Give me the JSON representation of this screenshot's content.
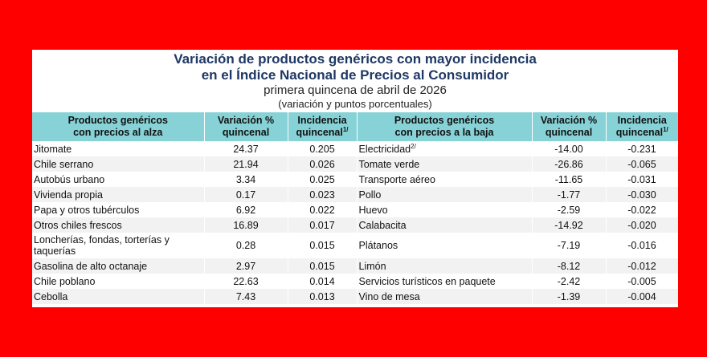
{
  "title": {
    "line1": "Variación de productos genéricos con mayor incidencia",
    "line2": "en el Índice Nacional de Precios al Consumidor",
    "subtitle": "primera quincena de abril de 2026",
    "note": "(variación y puntos porcentuales)"
  },
  "headers": {
    "up_product_l1": "Productos genéricos",
    "up_product_l2": "con precios al alza",
    "variation_l1": "Variación %",
    "variation_l2": "quincenal",
    "incidence_l1": "Incidencia",
    "incidence_l2": "quincenal",
    "incidence_sup": "1/",
    "down_product_l1": "Productos genéricos",
    "down_product_l2": "con precios a la baja"
  },
  "rows": [
    {
      "up": "Jitomate",
      "up_var": "24.37",
      "up_inc": "0.205",
      "down": "Electricidad",
      "down_sup": "2/",
      "down_var": "-14.00",
      "down_inc": "-0.231"
    },
    {
      "up": "Chile serrano",
      "up_var": "21.94",
      "up_inc": "0.026",
      "down": "Tomate verde",
      "down_sup": "",
      "down_var": "-26.86",
      "down_inc": "-0.065"
    },
    {
      "up": "Autobús urbano",
      "up_var": "3.34",
      "up_inc": "0.025",
      "down": "Transporte aéreo",
      "down_sup": "",
      "down_var": "-11.65",
      "down_inc": "-0.031"
    },
    {
      "up": "Vivienda propia",
      "up_var": "0.17",
      "up_inc": "0.023",
      "down": "Pollo",
      "down_sup": "",
      "down_var": "-1.77",
      "down_inc": "-0.030"
    },
    {
      "up": "Papa y otros tubérculos",
      "up_var": "6.92",
      "up_inc": "0.022",
      "down": "Huevo",
      "down_sup": "",
      "down_var": "-2.59",
      "down_inc": "-0.022"
    },
    {
      "up": "Otros chiles frescos",
      "up_var": "16.89",
      "up_inc": "0.017",
      "down": "Calabacita",
      "down_sup": "",
      "down_var": "-14.92",
      "down_inc": "-0.020"
    },
    {
      "up": "Loncherías, fondas, torterías y taquerías",
      "up_var": "0.28",
      "up_inc": "0.015",
      "down": "Plátanos",
      "down_sup": "",
      "down_var": "-7.19",
      "down_inc": "-0.016"
    },
    {
      "up": "Gasolina de alto octanaje",
      "up_var": "2.97",
      "up_inc": "0.015",
      "down": "Limón",
      "down_sup": "",
      "down_var": "-8.12",
      "down_inc": "-0.012"
    },
    {
      "up": "Chile poblano",
      "up_var": "22.63",
      "up_inc": "0.014",
      "down": "Servicios turísticos en paquete",
      "down_sup": "",
      "down_var": "-2.42",
      "down_inc": "-0.005"
    },
    {
      "up": "Cebolla",
      "up_var": "7.43",
      "up_inc": "0.013",
      "down": "Vino de mesa",
      "down_sup": "",
      "down_var": "-1.39",
      "down_inc": "-0.004"
    }
  ]
}
